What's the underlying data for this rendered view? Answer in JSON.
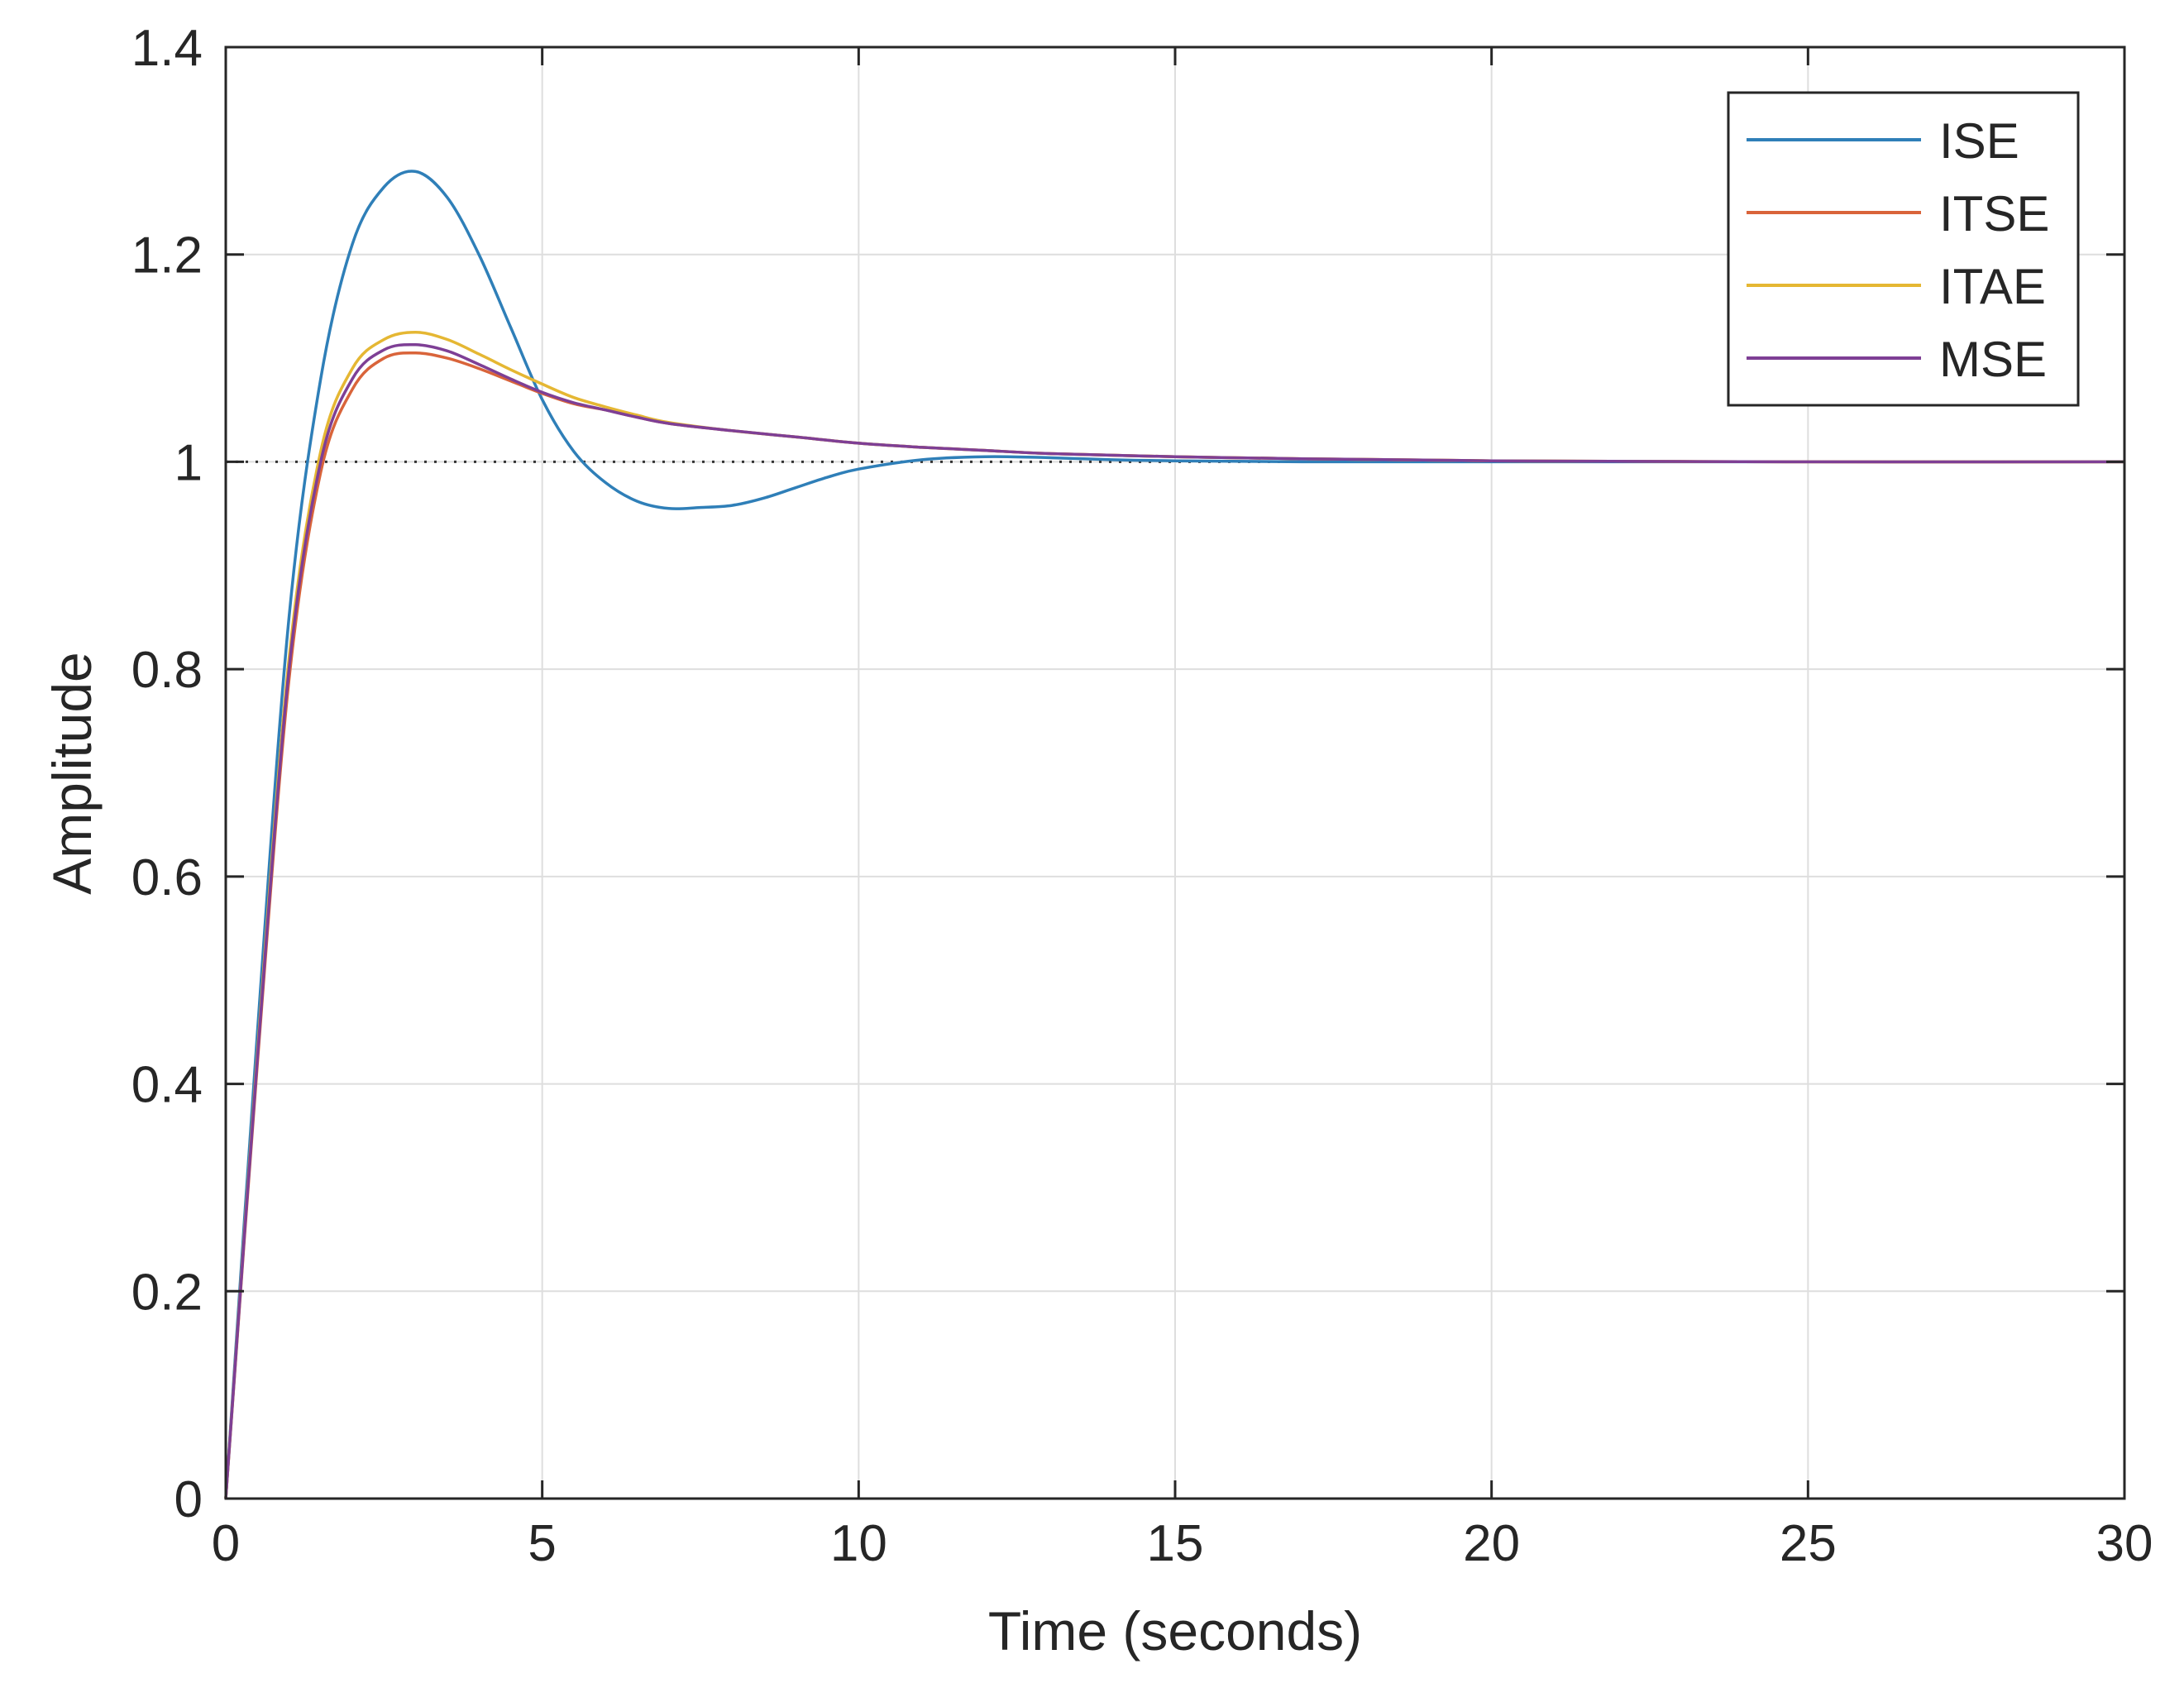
{
  "chart_data": {
    "type": "line",
    "title": "",
    "xlabel": "Time (seconds)",
    "ylabel": "Amplitude",
    "xlim": [
      0,
      30
    ],
    "ylim": [
      0,
      1.4
    ],
    "xticks": [
      0,
      5,
      10,
      15,
      20,
      25,
      30
    ],
    "xtick_labels": [
      "0",
      "5",
      "10",
      "15",
      "20",
      "25",
      "30"
    ],
    "yticks": [
      0,
      0.2,
      0.4,
      0.6,
      0.8,
      1,
      1.2,
      1.4
    ],
    "ytick_labels": [
      "0",
      "0.2",
      "0.4",
      "0.6",
      "0.8",
      "1",
      "1.2",
      "1.4"
    ],
    "grid": true,
    "legend_position": "top-right",
    "reference_line": {
      "y": 1,
      "style": "dotted",
      "color": "#333333"
    },
    "series": [
      {
        "name": "ISE",
        "color": "#2f7fb8",
        "x": [
          0,
          0.5,
          1,
          1.5,
          2,
          2.5,
          3,
          3.5,
          4,
          4.5,
          5,
          5.5,
          6,
          6.5,
          7,
          7.5,
          8,
          8.5,
          9,
          9.5,
          10,
          11,
          12,
          13,
          14,
          15,
          17,
          20,
          25,
          30
        ],
        "y": [
          0,
          0.45,
          0.85,
          1.08,
          1.21,
          1.265,
          1.28,
          1.255,
          1.2,
          1.13,
          1.06,
          1.01,
          0.98,
          0.962,
          0.955,
          0.956,
          0.958,
          0.965,
          0.975,
          0.985,
          0.993,
          1.002,
          1.005,
          1.004,
          1.002,
          1.001,
          1.0,
          1.0,
          1.0,
          1.0
        ]
      },
      {
        "name": "ITSE",
        "color": "#d9643a",
        "x": [
          0,
          0.5,
          1,
          1.5,
          2,
          2.5,
          3,
          3.5,
          4,
          4.5,
          5,
          5.5,
          6,
          6.5,
          7,
          8,
          9,
          10,
          11,
          12,
          13,
          15,
          17,
          20,
          25,
          30
        ],
        "y": [
          0,
          0.42,
          0.79,
          0.99,
          1.07,
          1.1,
          1.105,
          1.1,
          1.09,
          1.078,
          1.066,
          1.056,
          1.05,
          1.043,
          1.037,
          1.03,
          1.024,
          1.018,
          1.014,
          1.011,
          1.008,
          1.005,
          1.003,
          1.001,
          1.0,
          1.0
        ]
      },
      {
        "name": "ITAE",
        "color": "#e5b733",
        "x": [
          0,
          0.5,
          1,
          1.5,
          2,
          2.5,
          3,
          3.5,
          4,
          4.5,
          5,
          5.5,
          6,
          6.5,
          7,
          8,
          9,
          10,
          11,
          12,
          13,
          15,
          17,
          20,
          25,
          30
        ],
        "y": [
          0,
          0.43,
          0.81,
          1.01,
          1.09,
          1.118,
          1.125,
          1.118,
          1.104,
          1.089,
          1.075,
          1.062,
          1.053,
          1.045,
          1.038,
          1.03,
          1.024,
          1.018,
          1.014,
          1.011,
          1.008,
          1.005,
          1.003,
          1.001,
          1.0,
          1.0
        ]
      },
      {
        "name": "MSE",
        "color": "#7e3f95",
        "x": [
          0,
          0.5,
          1,
          1.5,
          2,
          2.5,
          3,
          3.5,
          4,
          4.5,
          5,
          5.5,
          6,
          6.5,
          7,
          8,
          9,
          10,
          11,
          12,
          13,
          15,
          17,
          20,
          25,
          30
        ],
        "y": [
          0,
          0.425,
          0.8,
          1.0,
          1.08,
          1.108,
          1.113,
          1.107,
          1.094,
          1.08,
          1.067,
          1.057,
          1.05,
          1.043,
          1.037,
          1.03,
          1.024,
          1.018,
          1.014,
          1.011,
          1.008,
          1.005,
          1.003,
          1.001,
          1.0,
          1.0
        ]
      }
    ]
  }
}
